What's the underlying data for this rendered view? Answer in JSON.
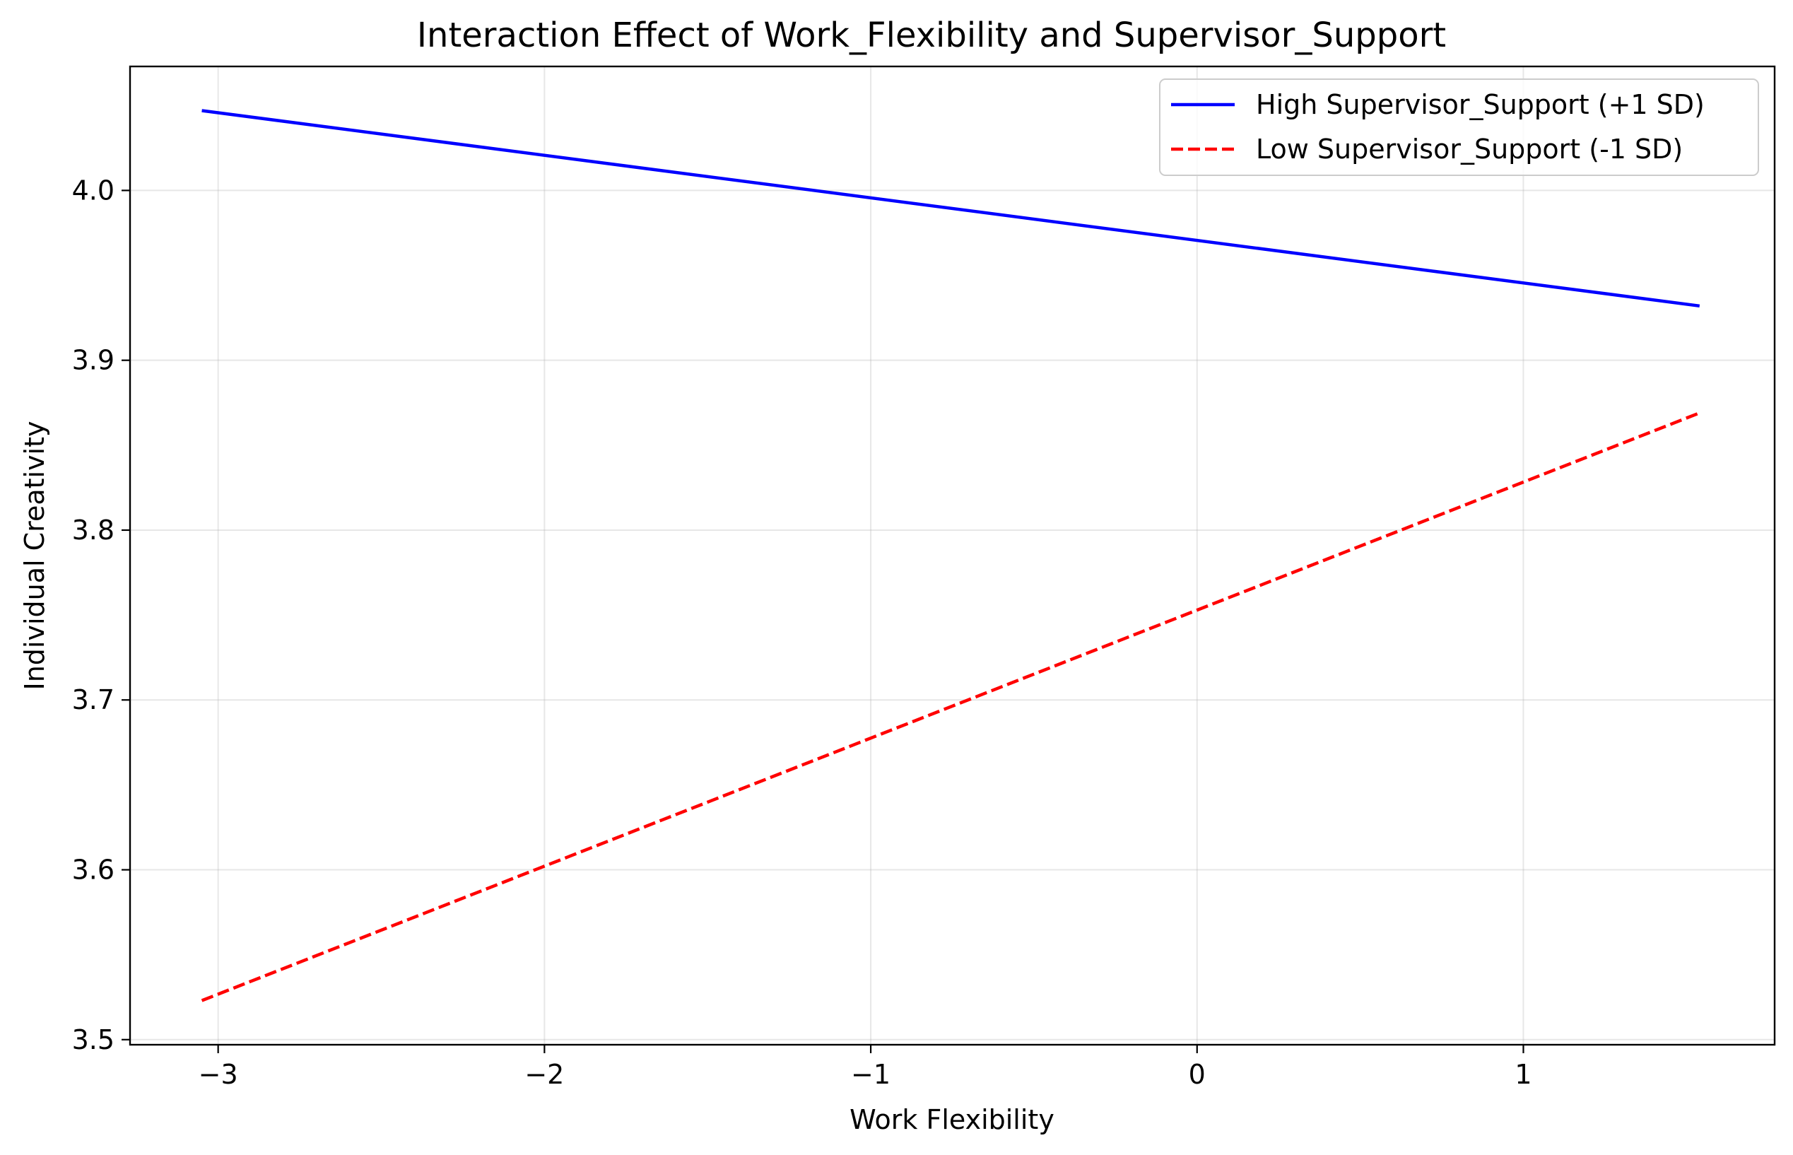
{
  "chart_data": {
    "type": "line",
    "title": "Interaction Effect of Work_Flexibility and Supervisor_Support",
    "xlabel": "Work Flexibility",
    "ylabel": "Individual Creativity",
    "xlim": [
      -3.27,
      1.77
    ],
    "ylim": [
      3.497,
      4.073
    ],
    "xticks": [
      -3,
      -2,
      -1,
      0,
      1
    ],
    "xtick_labels": [
      "−3",
      "−2",
      "−1",
      "0",
      "1"
    ],
    "yticks": [
      3.5,
      3.6,
      3.7,
      3.8,
      3.9,
      4.0
    ],
    "ytick_labels": [
      "3.5",
      "3.6",
      "3.7",
      "3.8",
      "3.9",
      "4.0"
    ],
    "grid": true,
    "legend_position": "top-right",
    "series": [
      {
        "name": "High Supervisor_Support (+1 SD)",
        "color": "#0000ff",
        "style": "solid",
        "x": [
          -3.05,
          1.54
        ],
        "y": [
          4.047,
          3.932
        ]
      },
      {
        "name": "Low Supervisor_Support (-1 SD)",
        "color": "#ff0000",
        "style": "dashed",
        "x": [
          -3.05,
          1.54
        ],
        "y": [
          3.523,
          3.869
        ]
      }
    ]
  }
}
